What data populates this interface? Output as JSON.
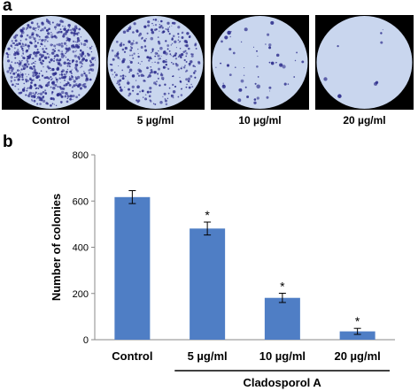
{
  "panel_a": {
    "label": "a",
    "wells": [
      {
        "label": "Control",
        "colony_density": "very-high"
      },
      {
        "label": "5 µg/ml",
        "colony_density": "high"
      },
      {
        "label": "10 µg/ml",
        "colony_density": "low"
      },
      {
        "label": "20 µg/ml",
        "colony_density": "very-low"
      }
    ],
    "colors": {
      "well_background": "#c9d6ee",
      "colony_stain": "#2d2d8c",
      "frame": "#000000"
    }
  },
  "panel_b": {
    "label": "b"
  },
  "chart_data": {
    "type": "bar",
    "title": "",
    "xlabel": "",
    "ylabel": "Number of colonies",
    "categories": [
      "Control",
      "5 µg/ml",
      "10 µg/ml",
      "20 µg/ml"
    ],
    "values": [
      617,
      481,
      181,
      36
    ],
    "errors": [
      28,
      28,
      20,
      13
    ],
    "significance": [
      "",
      "*",
      "*",
      "*"
    ],
    "ylim": [
      0,
      800
    ],
    "yticks": [
      0,
      200,
      400,
      600,
      800
    ],
    "group_label": "Cladosporol A",
    "bar_color": "#4f7ec5",
    "grid": false
  }
}
